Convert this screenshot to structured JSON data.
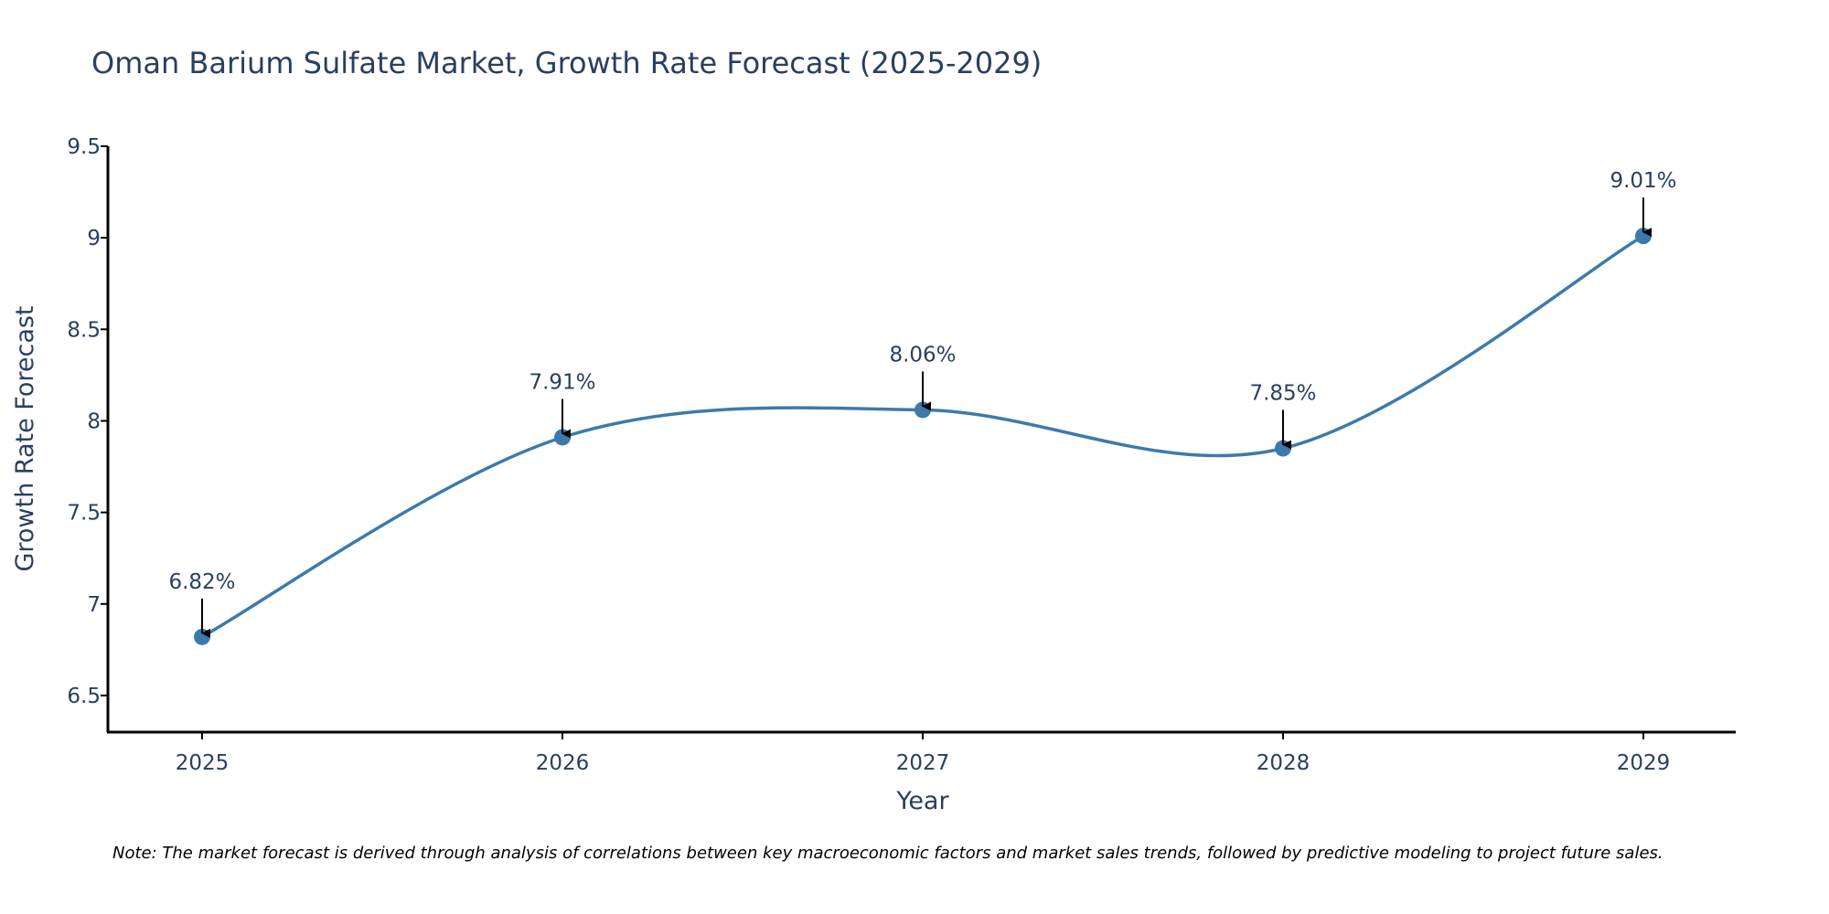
{
  "chart_data": {
    "type": "line",
    "title": "Oman Barium Sulfate Market, Growth Rate Forecast (2025-2029)",
    "xlabel": "Year",
    "ylabel": "Growth Rate Forecast",
    "categories": [
      "2025",
      "2026",
      "2027",
      "2028",
      "2029"
    ],
    "values": [
      6.82,
      7.91,
      8.06,
      7.85,
      9.01
    ],
    "data_labels": [
      "6.82%",
      "7.91%",
      "8.06%",
      "7.85%",
      "9.01%"
    ],
    "ylim": [
      6.3,
      9.5
    ],
    "yticks": [
      6.5,
      7,
      7.5,
      8,
      8.5,
      9,
      9.5
    ],
    "ytick_labels": [
      "6.5",
      "7",
      "7.5",
      "8",
      "8.5",
      "9",
      "9.5"
    ],
    "line_shape": "spline",
    "grid": false,
    "series_color": "#3d7aab",
    "annotation_arrow_color": "#000000"
  },
  "note": "Note: The market forecast is derived through analysis of correlations between key macroeconomic factors and market sales trends, followed by predictive modeling to project future sales."
}
